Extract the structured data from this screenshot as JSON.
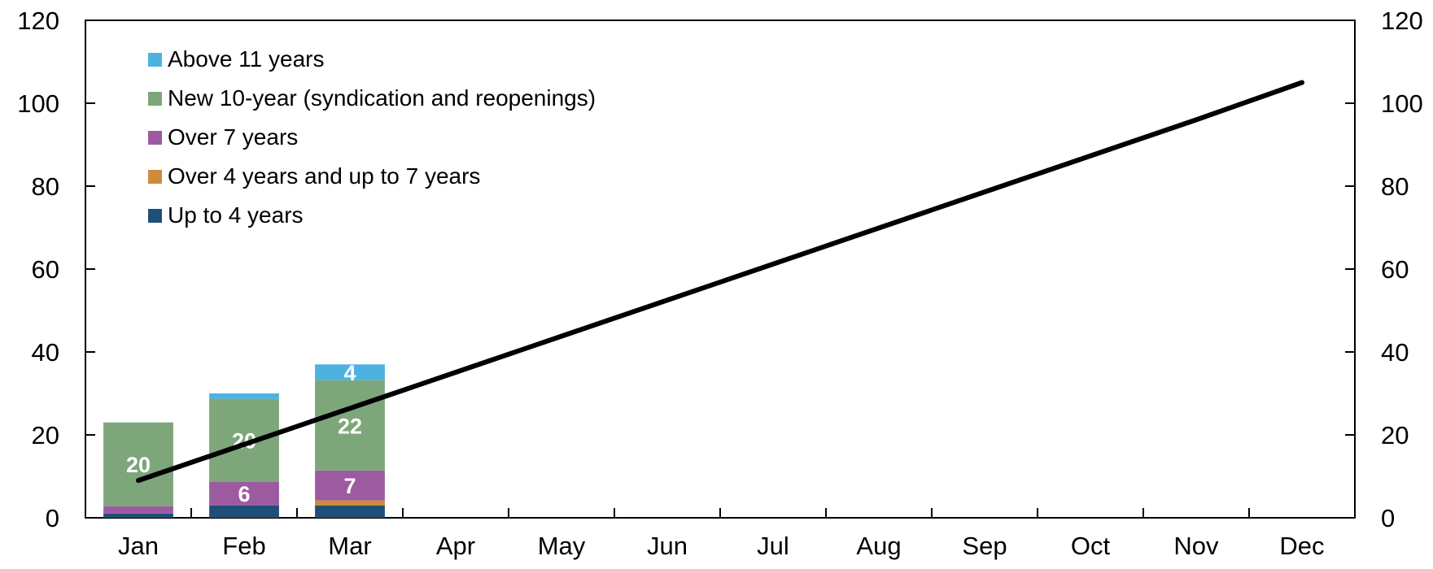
{
  "chart_data": {
    "type": "bar",
    "stacked": true,
    "categories": [
      "Jan",
      "Feb",
      "Mar",
      "Apr",
      "May",
      "Jun",
      "Jul",
      "Aug",
      "Sep",
      "Oct",
      "Nov",
      "Dec"
    ],
    "ylim": [
      0,
      120
    ],
    "yticks": [
      "0",
      "20",
      "40",
      "60",
      "80",
      "100",
      "120"
    ],
    "y2ticks": [
      "0",
      "20",
      "40",
      "60",
      "80",
      "100",
      "120"
    ],
    "grid": false,
    "legend_position": "top-left",
    "series": [
      {
        "name": "Up to 4 years",
        "color": "#1f4e79",
        "values": [
          1,
          3,
          3,
          null,
          null,
          null,
          null,
          null,
          null,
          null,
          null,
          null
        ],
        "labels": [
          "",
          "",
          "",
          "",
          "",
          "",
          "",
          "",
          "",
          "",
          "",
          ""
        ]
      },
      {
        "name": "Over 4 years and up to 7 years",
        "color": "#d08a3c",
        "values": [
          0,
          0,
          1.2,
          null,
          null,
          null,
          null,
          null,
          null,
          null,
          null,
          null
        ],
        "labels": [
          "",
          "",
          "",
          "",
          "",
          "",
          "",
          "",
          "",
          "",
          "",
          ""
        ]
      },
      {
        "name": "Over 7 years",
        "color": "#9c5ba1",
        "values": [
          1.8,
          5.7,
          7.2,
          null,
          null,
          null,
          null,
          null,
          null,
          null,
          null,
          null
        ],
        "labels": [
          "",
          "6",
          "7",
          "",
          "",
          "",
          "",
          "",
          "",
          "",
          "",
          ""
        ]
      },
      {
        "name": "New 10-year (syndication and reopenings)",
        "color": "#7da67a",
        "values": [
          20.2,
          20,
          21.8,
          null,
          null,
          null,
          null,
          null,
          null,
          null,
          null,
          null
        ],
        "labels": [
          "20",
          "20",
          "22",
          "",
          "",
          "",
          "",
          "",
          "",
          "",
          "",
          ""
        ]
      },
      {
        "name": "Above 11 years",
        "color": "#4db2e0",
        "values": [
          0,
          1.3,
          3.8,
          null,
          null,
          null,
          null,
          null,
          null,
          null,
          null,
          null
        ],
        "labels": [
          "",
          "",
          "4",
          "",
          "",
          "",
          "",
          "",
          "",
          "",
          "",
          ""
        ]
      }
    ],
    "line": {
      "type": "line",
      "color": "#000000",
      "values": [
        9,
        17.7,
        26.4,
        35.1,
        43.8,
        52.5,
        61.2,
        69.9,
        78.6,
        87.3,
        96,
        105
      ]
    }
  }
}
